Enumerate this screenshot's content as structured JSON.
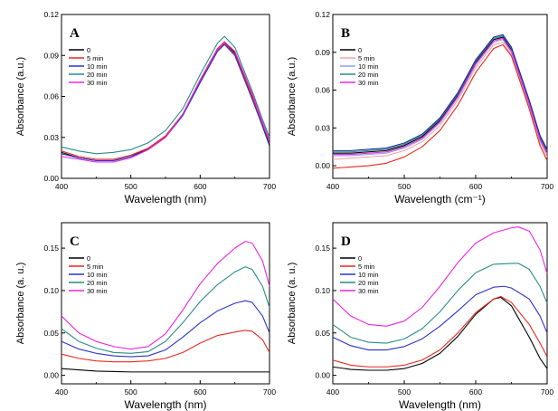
{
  "chart_data": [
    {
      "type": "line",
      "panel": "A",
      "xlabel": "Wavelength (nm)",
      "ylabel": "Absorbance (a.u.)",
      "xlim": [
        400,
        700
      ],
      "ylim": [
        0.0,
        0.12
      ],
      "xticks": [
        400,
        500,
        600,
        700
      ],
      "yticks": [
        0.0,
        0.03,
        0.06,
        0.09,
        0.12
      ],
      "yticklabels": [
        "0.00",
        "0.03",
        "0.06",
        "0.09",
        "0.12"
      ],
      "legend_position": "top-left",
      "series": [
        {
          "name": "0",
          "color": "#000000",
          "x": [
            400,
            425,
            450,
            475,
            500,
            525,
            550,
            575,
            600,
            625,
            635,
            650,
            675,
            690,
            700
          ],
          "y": [
            0.019,
            0.015,
            0.013,
            0.013,
            0.016,
            0.022,
            0.031,
            0.047,
            0.072,
            0.095,
            0.1,
            0.092,
            0.06,
            0.038,
            0.024
          ]
        },
        {
          "name": "5 min",
          "color": "#e8281e",
          "x": [
            400,
            425,
            450,
            475,
            500,
            525,
            550,
            575,
            600,
            625,
            635,
            650,
            675,
            690,
            700
          ],
          "y": [
            0.02,
            0.016,
            0.014,
            0.014,
            0.017,
            0.022,
            0.031,
            0.047,
            0.071,
            0.094,
            0.099,
            0.091,
            0.06,
            0.039,
            0.026
          ]
        },
        {
          "name": "10 min",
          "color": "#2a33c8",
          "x": [
            400,
            425,
            450,
            475,
            500,
            525,
            550,
            575,
            600,
            625,
            635,
            650,
            675,
            690,
            700
          ],
          "y": [
            0.018,
            0.015,
            0.013,
            0.013,
            0.016,
            0.021,
            0.03,
            0.046,
            0.07,
            0.093,
            0.098,
            0.09,
            0.058,
            0.038,
            0.025
          ]
        },
        {
          "name": "20 min",
          "color": "#2a8c84",
          "x": [
            400,
            425,
            450,
            475,
            500,
            525,
            550,
            575,
            600,
            625,
            635,
            650,
            675,
            690,
            700
          ],
          "y": [
            0.023,
            0.02,
            0.018,
            0.019,
            0.021,
            0.026,
            0.035,
            0.051,
            0.076,
            0.099,
            0.104,
            0.096,
            0.064,
            0.043,
            0.03
          ]
        },
        {
          "name": "30 min",
          "color": "#e826e0",
          "x": [
            400,
            425,
            450,
            475,
            500,
            525,
            550,
            575,
            600,
            625,
            635,
            650,
            675,
            690,
            700
          ],
          "y": [
            0.016,
            0.014,
            0.012,
            0.012,
            0.015,
            0.021,
            0.03,
            0.047,
            0.072,
            0.095,
            0.1,
            0.093,
            0.062,
            0.041,
            0.028
          ]
        }
      ]
    },
    {
      "type": "line",
      "panel": "B",
      "xlabel": "Wavelength (cm⁻¹)",
      "ylabel": "Absorbance (a.u.)",
      "xlim": [
        400,
        700
      ],
      "ylim": [
        -0.01,
        0.12
      ],
      "xticks": [
        400,
        500,
        600,
        700
      ],
      "yticks": [
        0.0,
        0.03,
        0.06,
        0.09,
        0.12
      ],
      "yticklabels": [
        "0.00",
        "0.03",
        "0.06",
        "0.09",
        "0.12"
      ],
      "legend_position": "top-left",
      "series": [
        {
          "name": "0",
          "color": "#000000",
          "x": [
            400,
            425,
            450,
            475,
            500,
            525,
            550,
            575,
            600,
            625,
            638,
            650,
            675,
            690,
            700
          ],
          "y": [
            0.01,
            0.01,
            0.011,
            0.012,
            0.016,
            0.023,
            0.036,
            0.056,
            0.082,
            0.1,
            0.102,
            0.092,
            0.05,
            0.022,
            0.011
          ]
        },
        {
          "name": "5 min",
          "color": "#f5a3a3",
          "x": [
            400,
            425,
            450,
            475,
            500,
            525,
            550,
            575,
            600,
            625,
            638,
            650,
            675,
            690,
            700
          ],
          "y": [
            0.005,
            0.006,
            0.007,
            0.008,
            0.012,
            0.019,
            0.032,
            0.052,
            0.078,
            0.096,
            0.098,
            0.088,
            0.046,
            0.018,
            0.007
          ]
        },
        {
          "name": "10 min",
          "color": "#8fa0e8",
          "x": [
            400,
            425,
            450,
            475,
            500,
            525,
            550,
            575,
            600,
            625,
            638,
            650,
            675,
            690,
            700
          ],
          "y": [
            0.008,
            0.008,
            0.009,
            0.01,
            0.014,
            0.021,
            0.034,
            0.054,
            0.08,
            0.098,
            0.1,
            0.09,
            0.048,
            0.02,
            0.009
          ]
        },
        {
          "name": "20 min",
          "color": "#2a8c84",
          "x": [
            400,
            425,
            450,
            475,
            500,
            525,
            550,
            575,
            600,
            625,
            638,
            650,
            675,
            690,
            700
          ],
          "y": [
            0.011,
            0.011,
            0.012,
            0.013,
            0.017,
            0.024,
            0.037,
            0.057,
            0.083,
            0.101,
            0.103,
            0.093,
            0.051,
            0.023,
            0.012
          ]
        },
        {
          "name": "30 min",
          "color": "#e826e0",
          "x": [
            400,
            425,
            450,
            475,
            500,
            525,
            550,
            575,
            600,
            625,
            638,
            650,
            675,
            690,
            700
          ],
          "y": [
            0.009,
            0.009,
            0.01,
            0.011,
            0.015,
            0.022,
            0.035,
            0.055,
            0.081,
            0.099,
            0.101,
            0.091,
            0.049,
            0.021,
            0.01
          ]
        },
        {
          "name": "",
          "color": "#e8281e",
          "x": [
            400,
            425,
            450,
            475,
            500,
            525,
            550,
            575,
            600,
            625,
            638,
            650,
            675,
            690,
            700
          ],
          "y": [
            -0.002,
            -0.001,
            0.0,
            0.002,
            0.007,
            0.015,
            0.028,
            0.048,
            0.074,
            0.093,
            0.096,
            0.087,
            0.045,
            0.016,
            0.004
          ]
        },
        {
          "name": "",
          "color": "#1a2a9c",
          "x": [
            400,
            425,
            450,
            475,
            500,
            525,
            550,
            575,
            600,
            625,
            638,
            650,
            675,
            690,
            700
          ],
          "y": [
            0.012,
            0.012,
            0.013,
            0.014,
            0.018,
            0.025,
            0.038,
            0.058,
            0.084,
            0.102,
            0.104,
            0.094,
            0.052,
            0.024,
            0.013
          ]
        }
      ]
    },
    {
      "type": "line",
      "panel": "C",
      "xlabel": "Wavelength (nm)",
      "ylabel": "Absorbance (a. u.)",
      "xlim": [
        400,
        700
      ],
      "ylim": [
        -0.01,
        0.18
      ],
      "xticks": [
        400,
        500,
        600,
        700
      ],
      "yticks": [
        0.0,
        0.05,
        0.1,
        0.15
      ],
      "yticklabels": [
        "0.00",
        "0.05",
        "0.10",
        "0.15"
      ],
      "legend_position": "top-left",
      "series": [
        {
          "name": "0",
          "color": "#000000",
          "x": [
            400,
            450,
            500,
            550,
            600,
            650,
            700
          ],
          "y": [
            0.008,
            0.005,
            0.004,
            0.004,
            0.004,
            0.004,
            0.004
          ]
        },
        {
          "name": "5 min",
          "color": "#e8281e",
          "x": [
            400,
            425,
            450,
            475,
            500,
            525,
            550,
            575,
            600,
            625,
            650,
            665,
            675,
            690,
            700
          ],
          "y": [
            0.025,
            0.02,
            0.017,
            0.016,
            0.016,
            0.017,
            0.02,
            0.027,
            0.038,
            0.047,
            0.051,
            0.053,
            0.052,
            0.042,
            0.027
          ]
        },
        {
          "name": "10 min",
          "color": "#2a33c8",
          "x": [
            400,
            425,
            450,
            475,
            500,
            525,
            550,
            575,
            600,
            625,
            650,
            665,
            675,
            690,
            700
          ],
          "y": [
            0.04,
            0.031,
            0.026,
            0.023,
            0.022,
            0.023,
            0.03,
            0.045,
            0.062,
            0.076,
            0.085,
            0.088,
            0.086,
            0.07,
            0.05
          ]
        },
        {
          "name": "20 min",
          "color": "#2a8c84",
          "x": [
            400,
            425,
            450,
            475,
            500,
            525,
            550,
            575,
            600,
            625,
            650,
            665,
            675,
            690,
            700
          ],
          "y": [
            0.055,
            0.04,
            0.032,
            0.027,
            0.026,
            0.028,
            0.04,
            0.062,
            0.087,
            0.107,
            0.122,
            0.128,
            0.125,
            0.105,
            0.08
          ]
        },
        {
          "name": "30 min",
          "color": "#e826e0",
          "x": [
            400,
            425,
            450,
            475,
            500,
            525,
            550,
            575,
            600,
            625,
            650,
            665,
            675,
            690,
            700
          ],
          "y": [
            0.07,
            0.05,
            0.04,
            0.034,
            0.031,
            0.034,
            0.049,
            0.077,
            0.108,
            0.132,
            0.15,
            0.158,
            0.156,
            0.135,
            0.105
          ]
        }
      ]
    },
    {
      "type": "line",
      "panel": "D",
      "xlabel": "Wavelength (nm)",
      "ylabel": "Absorbance (a. u.)",
      "xlim": [
        400,
        700
      ],
      "ylim": [
        -0.01,
        0.18
      ],
      "xticks": [
        400,
        500,
        600,
        700
      ],
      "yticks": [
        0.0,
        0.05,
        0.1,
        0.15
      ],
      "yticklabels": [
        "0.00",
        "0.05",
        "0.10",
        "0.15"
      ],
      "legend_position": "top-left",
      "series": [
        {
          "name": "0",
          "color": "#000000",
          "x": [
            400,
            425,
            450,
            475,
            500,
            525,
            550,
            575,
            600,
            625,
            635,
            650,
            675,
            690,
            700
          ],
          "y": [
            0.01,
            0.007,
            0.006,
            0.006,
            0.008,
            0.014,
            0.026,
            0.046,
            0.072,
            0.09,
            0.092,
            0.082,
            0.045,
            0.02,
            0.008
          ]
        },
        {
          "name": "5 min",
          "color": "#e8281e",
          "x": [
            400,
            425,
            450,
            475,
            500,
            525,
            550,
            575,
            600,
            625,
            635,
            650,
            675,
            690,
            700
          ],
          "y": [
            0.018,
            0.012,
            0.01,
            0.01,
            0.012,
            0.018,
            0.03,
            0.05,
            0.074,
            0.09,
            0.093,
            0.086,
            0.06,
            0.038,
            0.022
          ]
        },
        {
          "name": "10 min",
          "color": "#2a33c8",
          "x": [
            400,
            425,
            450,
            475,
            500,
            525,
            550,
            575,
            600,
            625,
            640,
            650,
            675,
            690,
            700
          ],
          "y": [
            0.045,
            0.035,
            0.03,
            0.03,
            0.034,
            0.043,
            0.058,
            0.076,
            0.095,
            0.104,
            0.105,
            0.103,
            0.09,
            0.07,
            0.05
          ]
        },
        {
          "name": "20 min",
          "color": "#2a8c84",
          "x": [
            400,
            425,
            450,
            475,
            500,
            525,
            550,
            575,
            600,
            625,
            650,
            660,
            675,
            690,
            700
          ],
          "y": [
            0.06,
            0.045,
            0.039,
            0.038,
            0.043,
            0.055,
            0.075,
            0.1,
            0.121,
            0.131,
            0.132,
            0.132,
            0.125,
            0.105,
            0.085
          ]
        },
        {
          "name": "30 min",
          "color": "#e826e0",
          "x": [
            400,
            425,
            450,
            475,
            500,
            525,
            550,
            575,
            600,
            625,
            650,
            660,
            675,
            690,
            700
          ],
          "y": [
            0.09,
            0.07,
            0.06,
            0.058,
            0.064,
            0.08,
            0.105,
            0.133,
            0.156,
            0.168,
            0.174,
            0.175,
            0.17,
            0.148,
            0.12
          ]
        }
      ]
    }
  ]
}
